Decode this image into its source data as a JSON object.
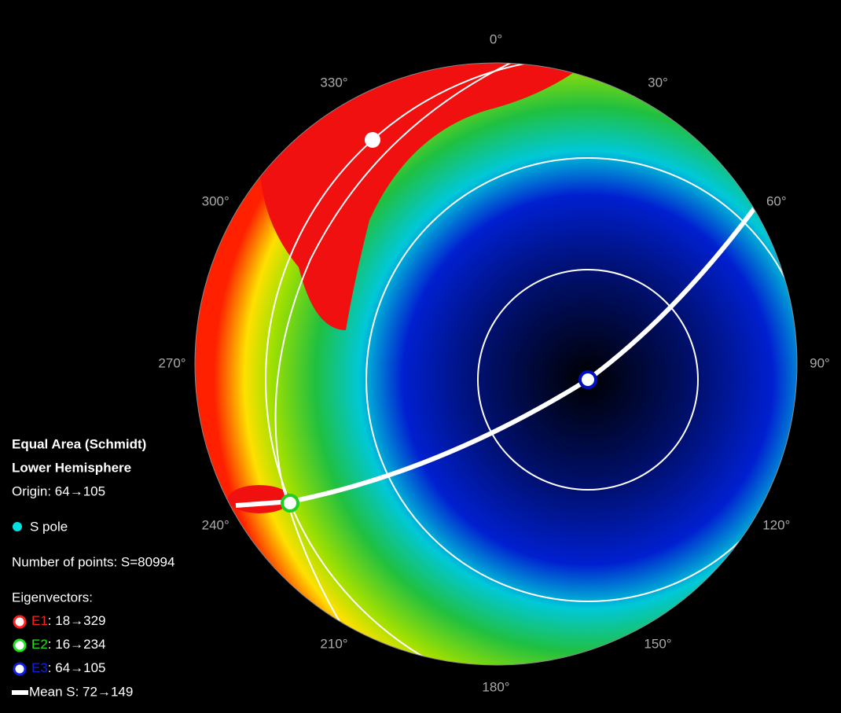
{
  "azimuth_labels": [
    "0°",
    "30°",
    "60°",
    "90°",
    "120°",
    "150°",
    "180°",
    "210°",
    "240°",
    "270°",
    "300°",
    "330°"
  ],
  "legend": {
    "projection": "Equal Area (Schmidt)",
    "hemisphere": "Lower Hemisphere",
    "origin": "Origin: 64→105",
    "pole": "S pole",
    "points": "Number of points: S=80994",
    "eigen_title": "Eigenvectors:",
    "eigenvectors": [
      {
        "label": "E1",
        "text": ": 18→329"
      },
      {
        "label": "E2",
        "text": ": 16→234"
      },
      {
        "label": "E3",
        "text": ": 64→105"
      }
    ],
    "mean": "Mean S: 72→149"
  }
}
